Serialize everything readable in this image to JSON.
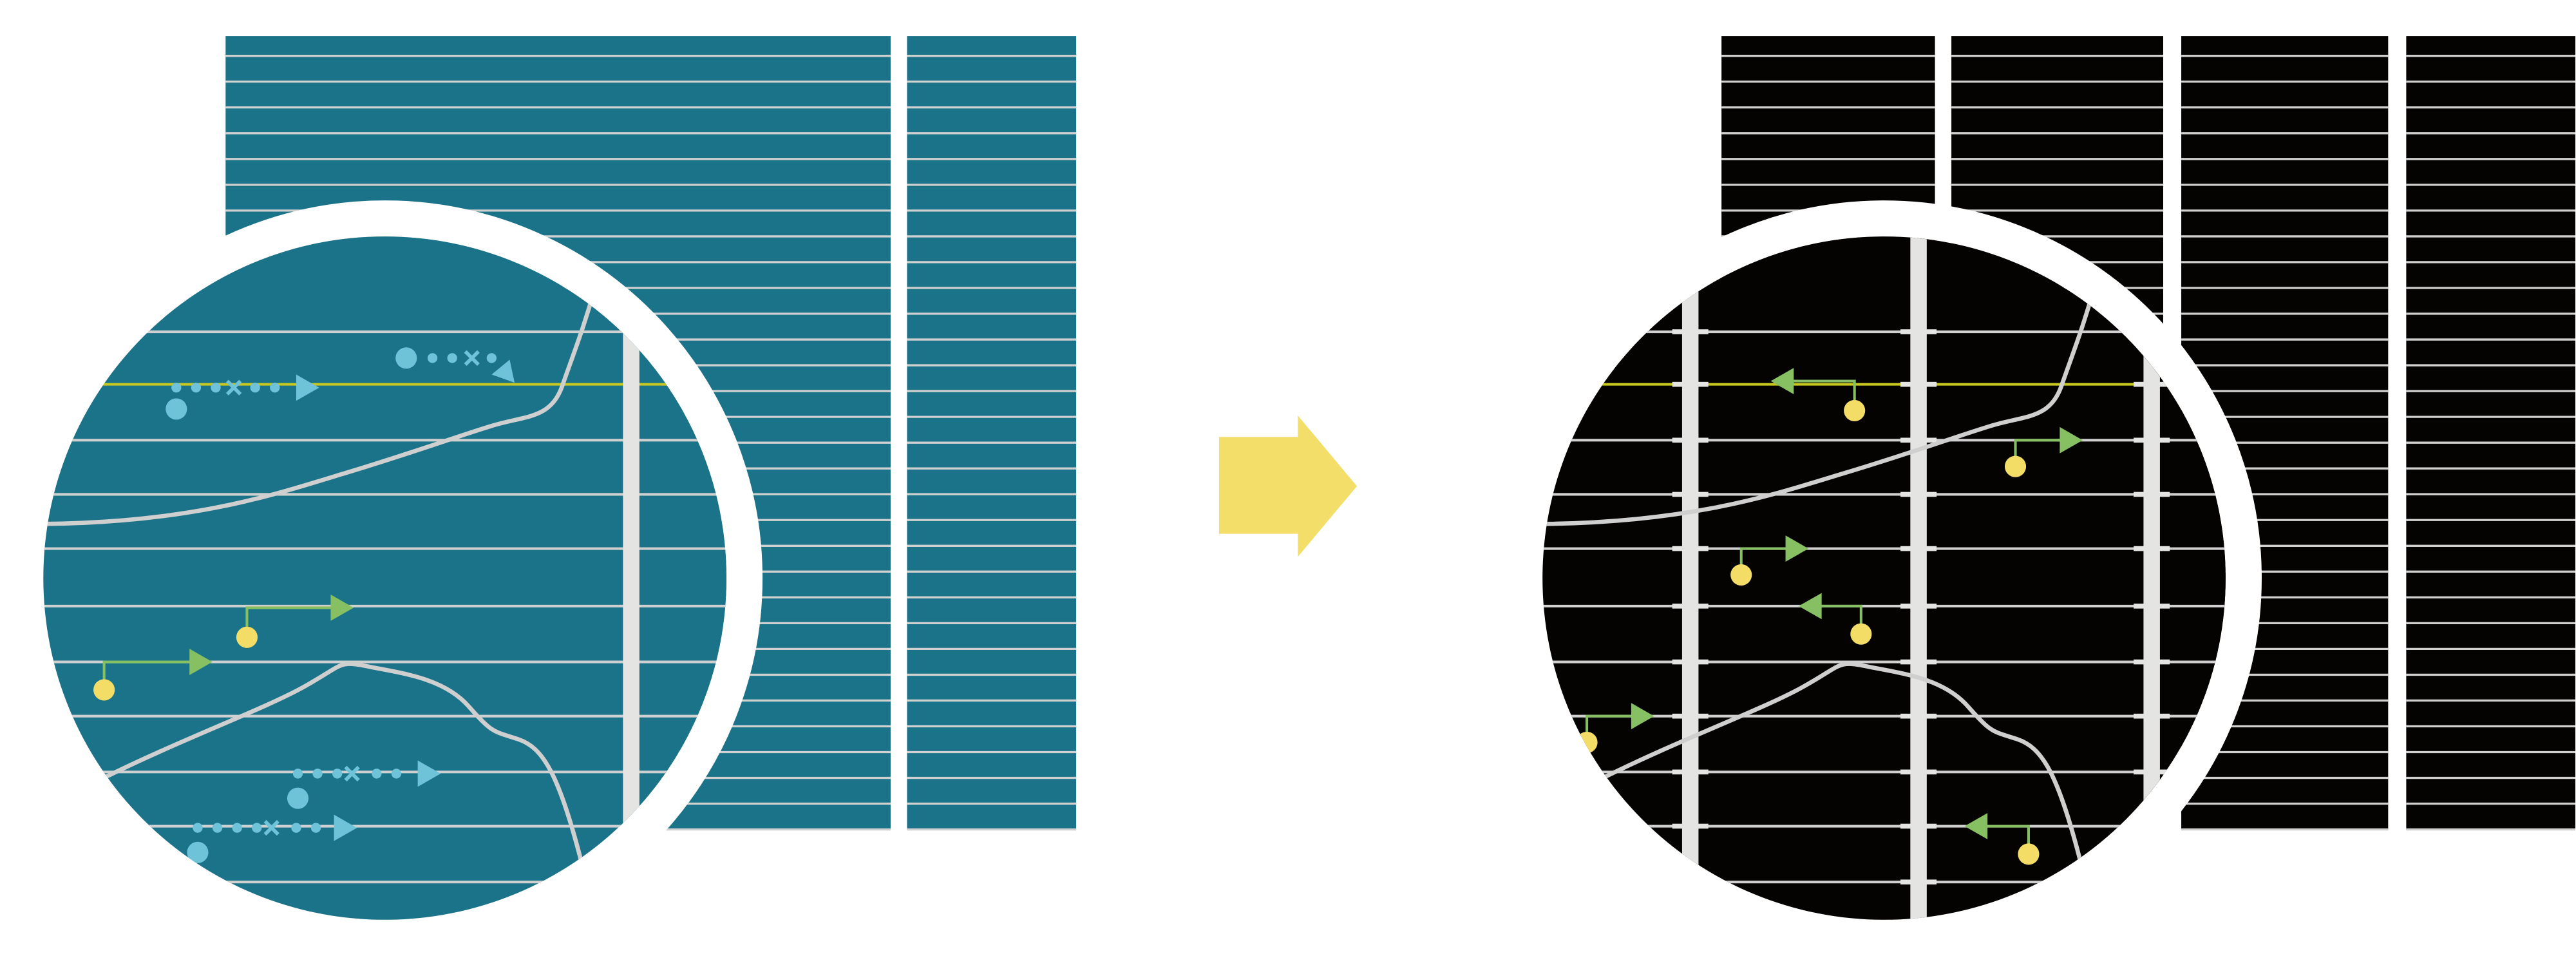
{
  "colors": {
    "background": "#ffffff",
    "left_panel_fill": "#1b7389",
    "right_panel_fill": "#050202",
    "grid_line": "#d0d0d0",
    "highlight_line": "#c8c81e",
    "vertical_bar": "#e4e4e2",
    "curve": "#cfcfcf",
    "blue_marker": "#6ec3d9",
    "yellow_pin": "#f4dd67",
    "green_arrow": "#86c063",
    "transition_arrow": "#f4de6a"
  }
}
